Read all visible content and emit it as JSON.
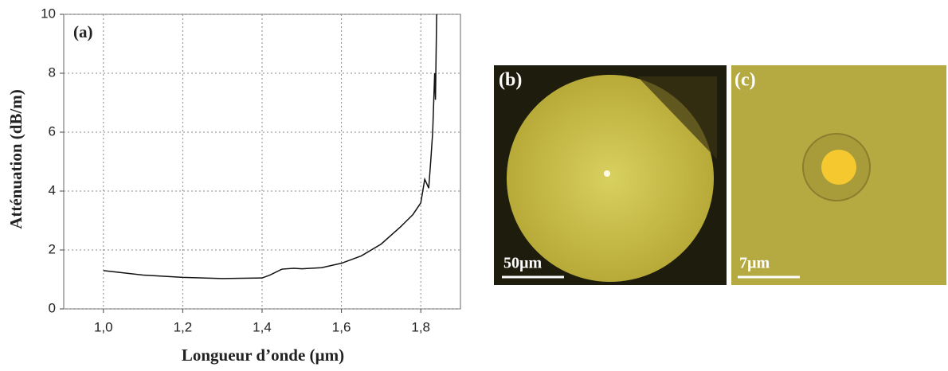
{
  "chart_data": {
    "type": "line",
    "panel_label": "(a)",
    "x_label": "Longueur d’onde (µm)",
    "y_label": "Atténuation (dB/m)",
    "xlim": [
      0.9,
      1.9
    ],
    "ylim": [
      0,
      10
    ],
    "xticks": [
      {
        "value": 1.0,
        "label": "1,0"
      },
      {
        "value": 1.2,
        "label": "1,2"
      },
      {
        "value": 1.4,
        "label": "1,4"
      },
      {
        "value": 1.6,
        "label": "1,6"
      },
      {
        "value": 1.8,
        "label": "1,8"
      }
    ],
    "yticks": [
      0,
      2,
      4,
      6,
      8,
      10
    ],
    "grid": true,
    "series": [
      {
        "name": null,
        "color": "#111111",
        "x": [
          1.0,
          1.1,
          1.2,
          1.3,
          1.4,
          1.42,
          1.45,
          1.48,
          1.5,
          1.55,
          1.6,
          1.65,
          1.7,
          1.75,
          1.78,
          1.8,
          1.81,
          1.82,
          1.825,
          1.83,
          1.835,
          1.837,
          1.84
        ],
        "values": [
          1.3,
          1.15,
          1.07,
          1.03,
          1.05,
          1.15,
          1.35,
          1.38,
          1.36,
          1.4,
          1.55,
          1.8,
          2.2,
          2.8,
          3.2,
          3.6,
          4.4,
          4.1,
          5.0,
          6.0,
          8.0,
          7.1,
          10
        ]
      }
    ]
  },
  "images": [
    {
      "label": "(b)",
      "scale": "50µm"
    },
    {
      "label": "(c)",
      "scale": "7µm"
    }
  ]
}
